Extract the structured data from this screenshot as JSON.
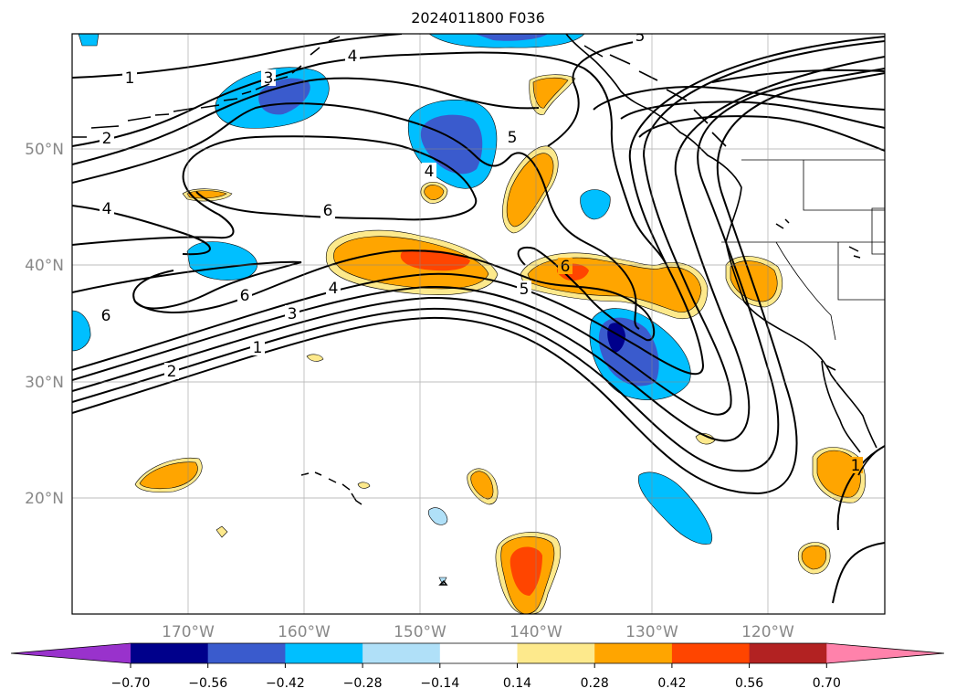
{
  "title": "2024011800 F036",
  "lon_ticks": [
    {
      "label": "170°W",
      "value": -170
    },
    {
      "label": "160°W",
      "value": -160
    },
    {
      "label": "150°W",
      "value": -150
    },
    {
      "label": "140°W",
      "value": -140
    },
    {
      "label": "130°W",
      "value": -130
    },
    {
      "label": "120°W",
      "value": -120
    }
  ],
  "lat_ticks": [
    {
      "label": "50°N",
      "value": 50
    },
    {
      "label": "40°N",
      "value": 40
    },
    {
      "label": "30°N",
      "value": 30
    },
    {
      "label": "20°N",
      "value": 20
    }
  ],
  "extent": {
    "lon_min": -180,
    "lon_max": -110,
    "lat_min": 10,
    "lat_max": 60
  },
  "contour_labels": [
    "1",
    "2",
    "3",
    "4",
    "5",
    "6"
  ],
  "colorbar": {
    "tick_labels": [
      "−0.70",
      "−0.56",
      "−0.42",
      "−0.28",
      "−0.14",
      "0.14",
      "0.28",
      "0.42",
      "0.56",
      "0.70"
    ],
    "colors": [
      "#9932cc",
      "#00008b",
      "#3a5bcd",
      "#00bfff",
      "#b0e0f8",
      "#ffffff",
      "#fde98c",
      "#ffa500",
      "#ff4500",
      "#b22222",
      "#ff82ab"
    ]
  }
}
